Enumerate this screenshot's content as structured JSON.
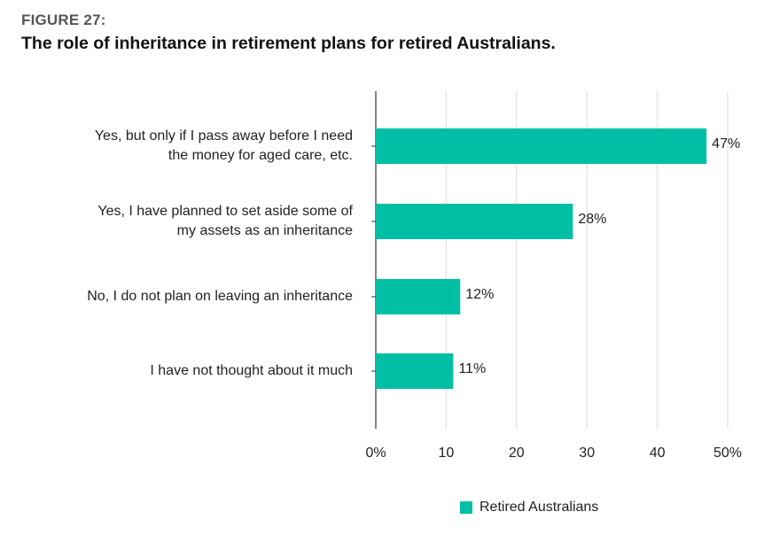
{
  "figure": {
    "label": "FIGURE 27:",
    "title": "The role of inheritance in retirement plans for retired Australians."
  },
  "colors": {
    "bar": "#00bfa5",
    "grid": "#dcdcdc",
    "axis": "#333333"
  },
  "chart_data": {
    "type": "bar",
    "orientation": "horizontal",
    "title": "The role of inheritance in retirement plans for retired Australians.",
    "categories": [
      [
        "Yes, but only if I pass away before I need",
        "the money for aged care, etc."
      ],
      [
        "Yes, I have planned to set aside some of",
        "my assets as an inheritance"
      ],
      [
        "No, I do not plan on leaving an inheritance"
      ],
      [
        "I have not thought about it much"
      ]
    ],
    "series": [
      {
        "name": "Retired Australians",
        "values": [
          47,
          28,
          12,
          11
        ]
      }
    ],
    "value_labels": [
      "47%",
      "28%",
      "12%",
      "11%"
    ],
    "xlim": [
      0,
      50
    ],
    "ticks": [
      0,
      10,
      20,
      30,
      40,
      50
    ],
    "tick_labels": [
      "0%",
      "10",
      "20",
      "30",
      "40",
      "50%"
    ],
    "grid": true,
    "legend": "bottom-right"
  }
}
